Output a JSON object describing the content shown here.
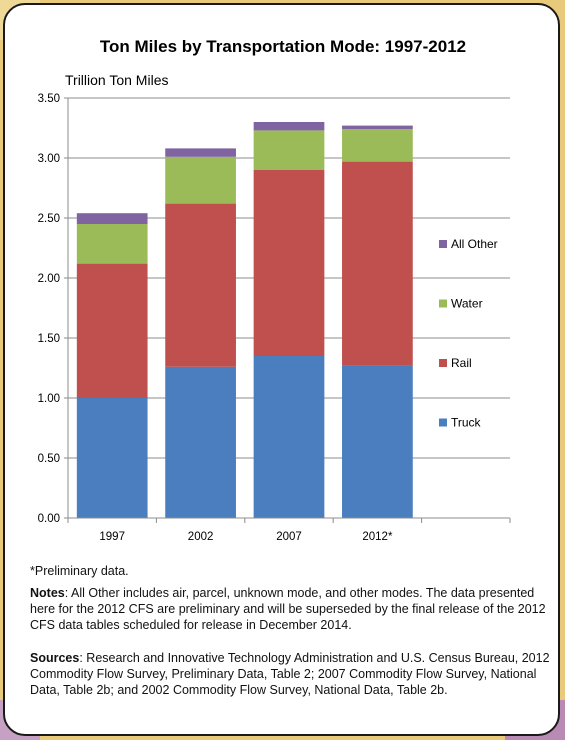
{
  "chart_data": {
    "type": "bar",
    "stacked": true,
    "title": "Ton Miles by Transportation Mode: 1997-2012",
    "ylabel": "Trillion Ton Miles",
    "xlabel": "",
    "categories": [
      "1997",
      "2002",
      "2007",
      "2012*"
    ],
    "ylim": [
      0,
      3.5
    ],
    "ytick_step": 0.5,
    "ytick_labels": [
      "0.00",
      "0.50",
      "1.00",
      "1.50",
      "2.00",
      "2.50",
      "3.00",
      "3.50"
    ],
    "grid": true,
    "legend_position": "right",
    "series": [
      {
        "name": "Truck",
        "color": "#4a7ebf",
        "values": [
          1.0,
          1.26,
          1.35,
          1.27
        ]
      },
      {
        "name": "Rail",
        "color": "#c0504d",
        "values": [
          1.12,
          1.36,
          1.55,
          1.7
        ]
      },
      {
        "name": "Water",
        "color": "#9bbb59",
        "values": [
          0.33,
          0.39,
          0.33,
          0.27
        ]
      },
      {
        "name": "All Other",
        "color": "#8064a2",
        "values": [
          0.09,
          0.07,
          0.07,
          0.03
        ]
      }
    ]
  },
  "footer": {
    "prelim": "*Preliminary data.",
    "notes_label": "Notes",
    "notes_text": ": All Other includes air, parcel, unknown mode, and other modes. The data presented here for the 2012 CFS are preliminary and will be superseded by the final release of the 2012 CFS data tables scheduled for release in December 2014.",
    "sources_label": "Sources",
    "sources_text": ": Research and Innovative Technology Administration and U.S. Census Bureau, 2012 Commodity Flow Survey, Preliminary Data, Table 2; 2007 Commodity Flow Survey, National Data, Table 2b; and 2002 Commodity Flow Survey, National Data, Table 2b."
  }
}
